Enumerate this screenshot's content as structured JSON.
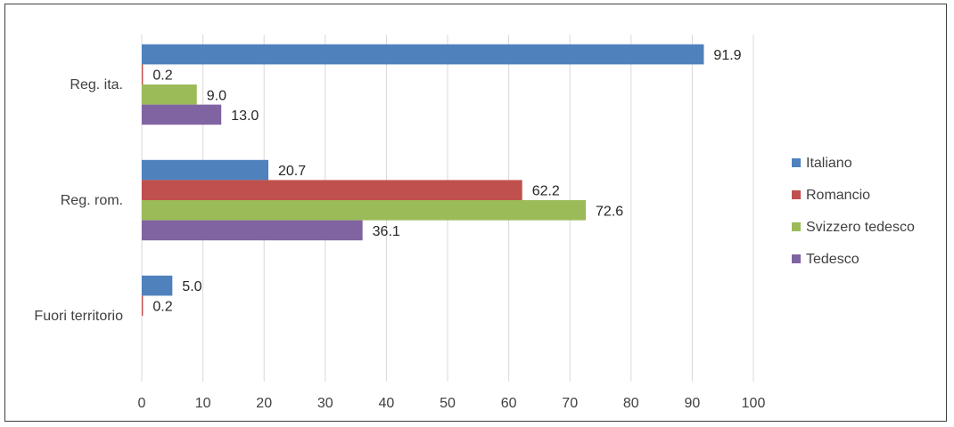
{
  "chart_data": {
    "type": "bar",
    "orientation": "horizontal",
    "categories": [
      "Reg. ita.",
      "Reg. rom.",
      "Fuori territorio"
    ],
    "series": [
      {
        "name": "Italiano",
        "color": "#4F81BD",
        "values": [
          91.9,
          20.7,
          5.0
        ],
        "labels": [
          "91.9",
          "20.7",
          "5.0"
        ]
      },
      {
        "name": "Romancio",
        "color": "#C0504D",
        "values": [
          0.2,
          62.2,
          0.2
        ],
        "labels": [
          "0.2",
          "62.2",
          "0.2"
        ]
      },
      {
        "name": "Svizzero tedesco",
        "color": "#9BBB59",
        "values": [
          9.0,
          72.6,
          null
        ],
        "labels": [
          "9.0",
          "72.6",
          ""
        ]
      },
      {
        "name": "Tedesco",
        "color": "#8064A2",
        "values": [
          13.0,
          36.1,
          null
        ],
        "labels": [
          "13.0",
          "36.1",
          ""
        ]
      }
    ],
    "xlim": [
      0,
      100
    ],
    "xticks": [
      "0",
      "10",
      "20",
      "30",
      "40",
      "50",
      "60",
      "70",
      "80",
      "90",
      "100"
    ],
    "grid": true,
    "legend": "right"
  }
}
